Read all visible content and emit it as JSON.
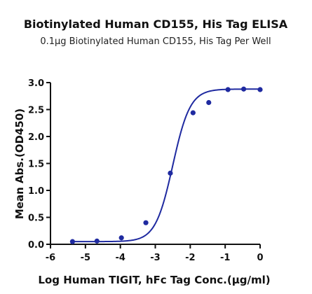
{
  "chart_data": {
    "type": "scatter",
    "title": "Biotinylated Human CD155, His Tag ELISA",
    "subtitle": "0.1μg Biotinylated Human CD155, His Tag Per Well",
    "xlabel": "Log Human TIGIT, hFc Tag Conc.(μg/ml)",
    "ylabel": "Mean Abs.(OD450)",
    "xlim": [
      -6,
      0
    ],
    "ylim": [
      0,
      3
    ],
    "x_ticks": [
      "-6",
      "-5",
      "-4",
      "-3",
      "-2",
      "-1",
      "0"
    ],
    "y_ticks": [
      "0.0",
      "0.5",
      "1.0",
      "1.5",
      "2.0",
      "2.5",
      "3.0"
    ],
    "grid": false,
    "colors": {
      "series": "#1f2aa0",
      "axis": "#111111"
    },
    "series": [
      {
        "x": [
          -5.37,
          -4.67,
          -3.97,
          -3.27,
          -2.57,
          -1.92,
          -1.47,
          -0.92,
          -0.47,
          0.0
        ],
        "y": [
          0.05,
          0.06,
          0.12,
          0.4,
          1.32,
          2.44,
          2.63,
          2.87,
          2.88,
          2.87
        ],
        "fit": {
          "type": "4PL",
          "bottom": 0.05,
          "top": 2.88,
          "logEC50": -2.5,
          "hill": 1.75
        }
      }
    ]
  }
}
